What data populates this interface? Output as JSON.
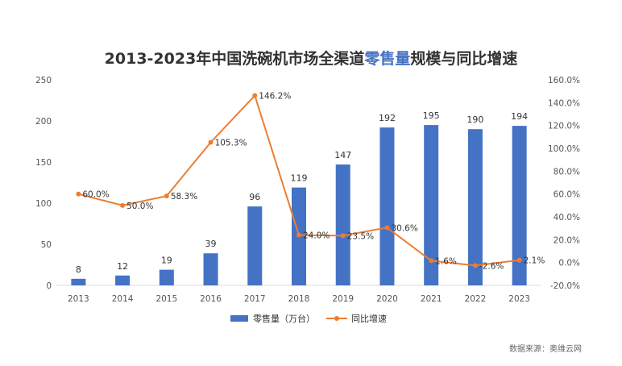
{
  "chart_data": {
    "type": "bar",
    "title": {
      "before": "2013-2023年中国洗碗机市场全渠道",
      "highlight": "零售量",
      "after": "规模与同比增速"
    },
    "categories": [
      "2013",
      "2014",
      "2015",
      "2016",
      "2017",
      "2018",
      "2019",
      "2020",
      "2021",
      "2022",
      "2023"
    ],
    "series": [
      {
        "name": "零售量（万台）",
        "type": "bar",
        "axis": "left",
        "values": [
          8,
          12,
          19,
          39,
          96,
          119,
          147,
          192,
          195,
          190,
          194
        ],
        "labels": [
          "8",
          "12",
          "19",
          "39",
          "96",
          "119",
          "147",
          "192",
          "195",
          "190",
          "194"
        ]
      },
      {
        "name": "同比增速",
        "type": "line",
        "axis": "right",
        "values": [
          60.0,
          50.0,
          58.3,
          105.3,
          146.2,
          24.0,
          23.5,
          30.6,
          1.6,
          -2.6,
          2.1
        ],
        "labels": [
          "60.0%",
          "50.0%",
          "58.3%",
          "105.3%",
          "146.2%",
          "24.0%",
          "23.5%",
          "30.6%",
          "1.6%",
          "-2.6%",
          "2.1%"
        ]
      }
    ],
    "y_left": {
      "min": 0,
      "max": 250,
      "ticks": [
        0,
        50,
        100,
        150,
        200,
        250
      ],
      "tick_labels": [
        "0",
        "50",
        "100",
        "150",
        "200",
        "250"
      ]
    },
    "y_right": {
      "min": -20,
      "max": 160,
      "ticks": [
        -20,
        0,
        20,
        40,
        60,
        80,
        100,
        120,
        140,
        160
      ],
      "tick_labels": [
        "-20.0%",
        "0.0%",
        "20.0%",
        "40.0%",
        "60.0%",
        "80.0%",
        "100.0%",
        "120.0%",
        "140.0%",
        "160.0%"
      ]
    },
    "grid": false,
    "legend_position": "bottom",
    "colors": {
      "bar": "#4472C4",
      "line": "#ED7D31",
      "title_highlight": "#4472C4",
      "axis": "#D9D9D9"
    }
  },
  "source": "数据来源：奥维云网"
}
